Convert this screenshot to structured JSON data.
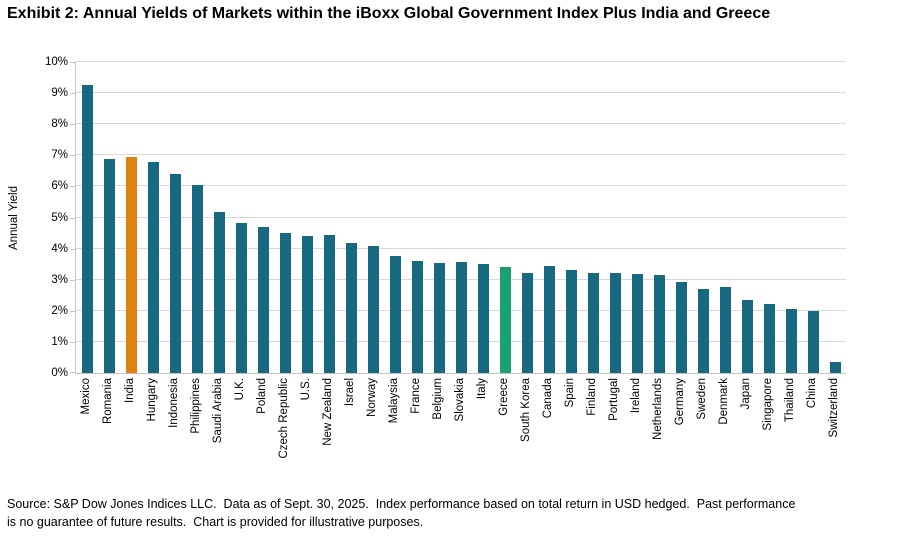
{
  "title": "Exhibit 2: Annual Yields of Markets within the iBoxx Global Government Index Plus India and Greece",
  "source_note": "Source: S&P Dow Jones Indices LLC.  Data as of Sept. 30, 2025.  Index performance based on total return in USD hedged.  Past performance is no guarantee of future results.  Chart is provided for illustrative purposes.",
  "chart_data": {
    "type": "bar",
    "title": "Exhibit 2: Annual Yields of Markets within the iBoxx Global Government Index Plus India and Greece",
    "xlabel": "",
    "ylabel": "Annual Yield",
    "ylim": [
      0,
      10
    ],
    "yticks": [
      "0%",
      "1%",
      "2%",
      "3%",
      "4%",
      "5%",
      "6%",
      "7%",
      "8%",
      "9%",
      "10%"
    ],
    "grid": true,
    "legend": "none",
    "categories": [
      "Mexico",
      "Romania",
      "India",
      "Hungary",
      "Indonesia",
      "Philippines",
      "Saudi Arabia",
      "U.K.",
      "Poland",
      "Czech Republic",
      "U.S.",
      "New Zealand",
      "Israel",
      "Norway",
      "Malaysia",
      "France",
      "Belgium",
      "Slovakia",
      "Italy",
      "Greece",
      "South Korea",
      "Canada",
      "Spain",
      "Finland",
      "Portugal",
      "Ireland",
      "Netherlands",
      "Germany",
      "Sweden",
      "Denmark",
      "Japan",
      "Singapore",
      "Thailand",
      "China",
      "Switzerland"
    ],
    "values": [
      9.27,
      6.87,
      6.93,
      6.77,
      6.4,
      6.06,
      5.19,
      4.82,
      4.69,
      4.51,
      4.41,
      4.45,
      4.17,
      4.07,
      3.75,
      3.59,
      3.54,
      3.56,
      3.5,
      3.42,
      3.23,
      3.45,
      3.3,
      3.21,
      3.2,
      3.18,
      3.14,
      2.93,
      2.71,
      2.76,
      2.35,
      2.21,
      2.05,
      2.01,
      0.34
    ],
    "colors": {
      "default": "#16697f",
      "grid": "#d9d9d9",
      "axis": "#c4c4c4",
      "highlights": {
        "India": "#df8013",
        "Greece": "#18a26f"
      }
    }
  }
}
